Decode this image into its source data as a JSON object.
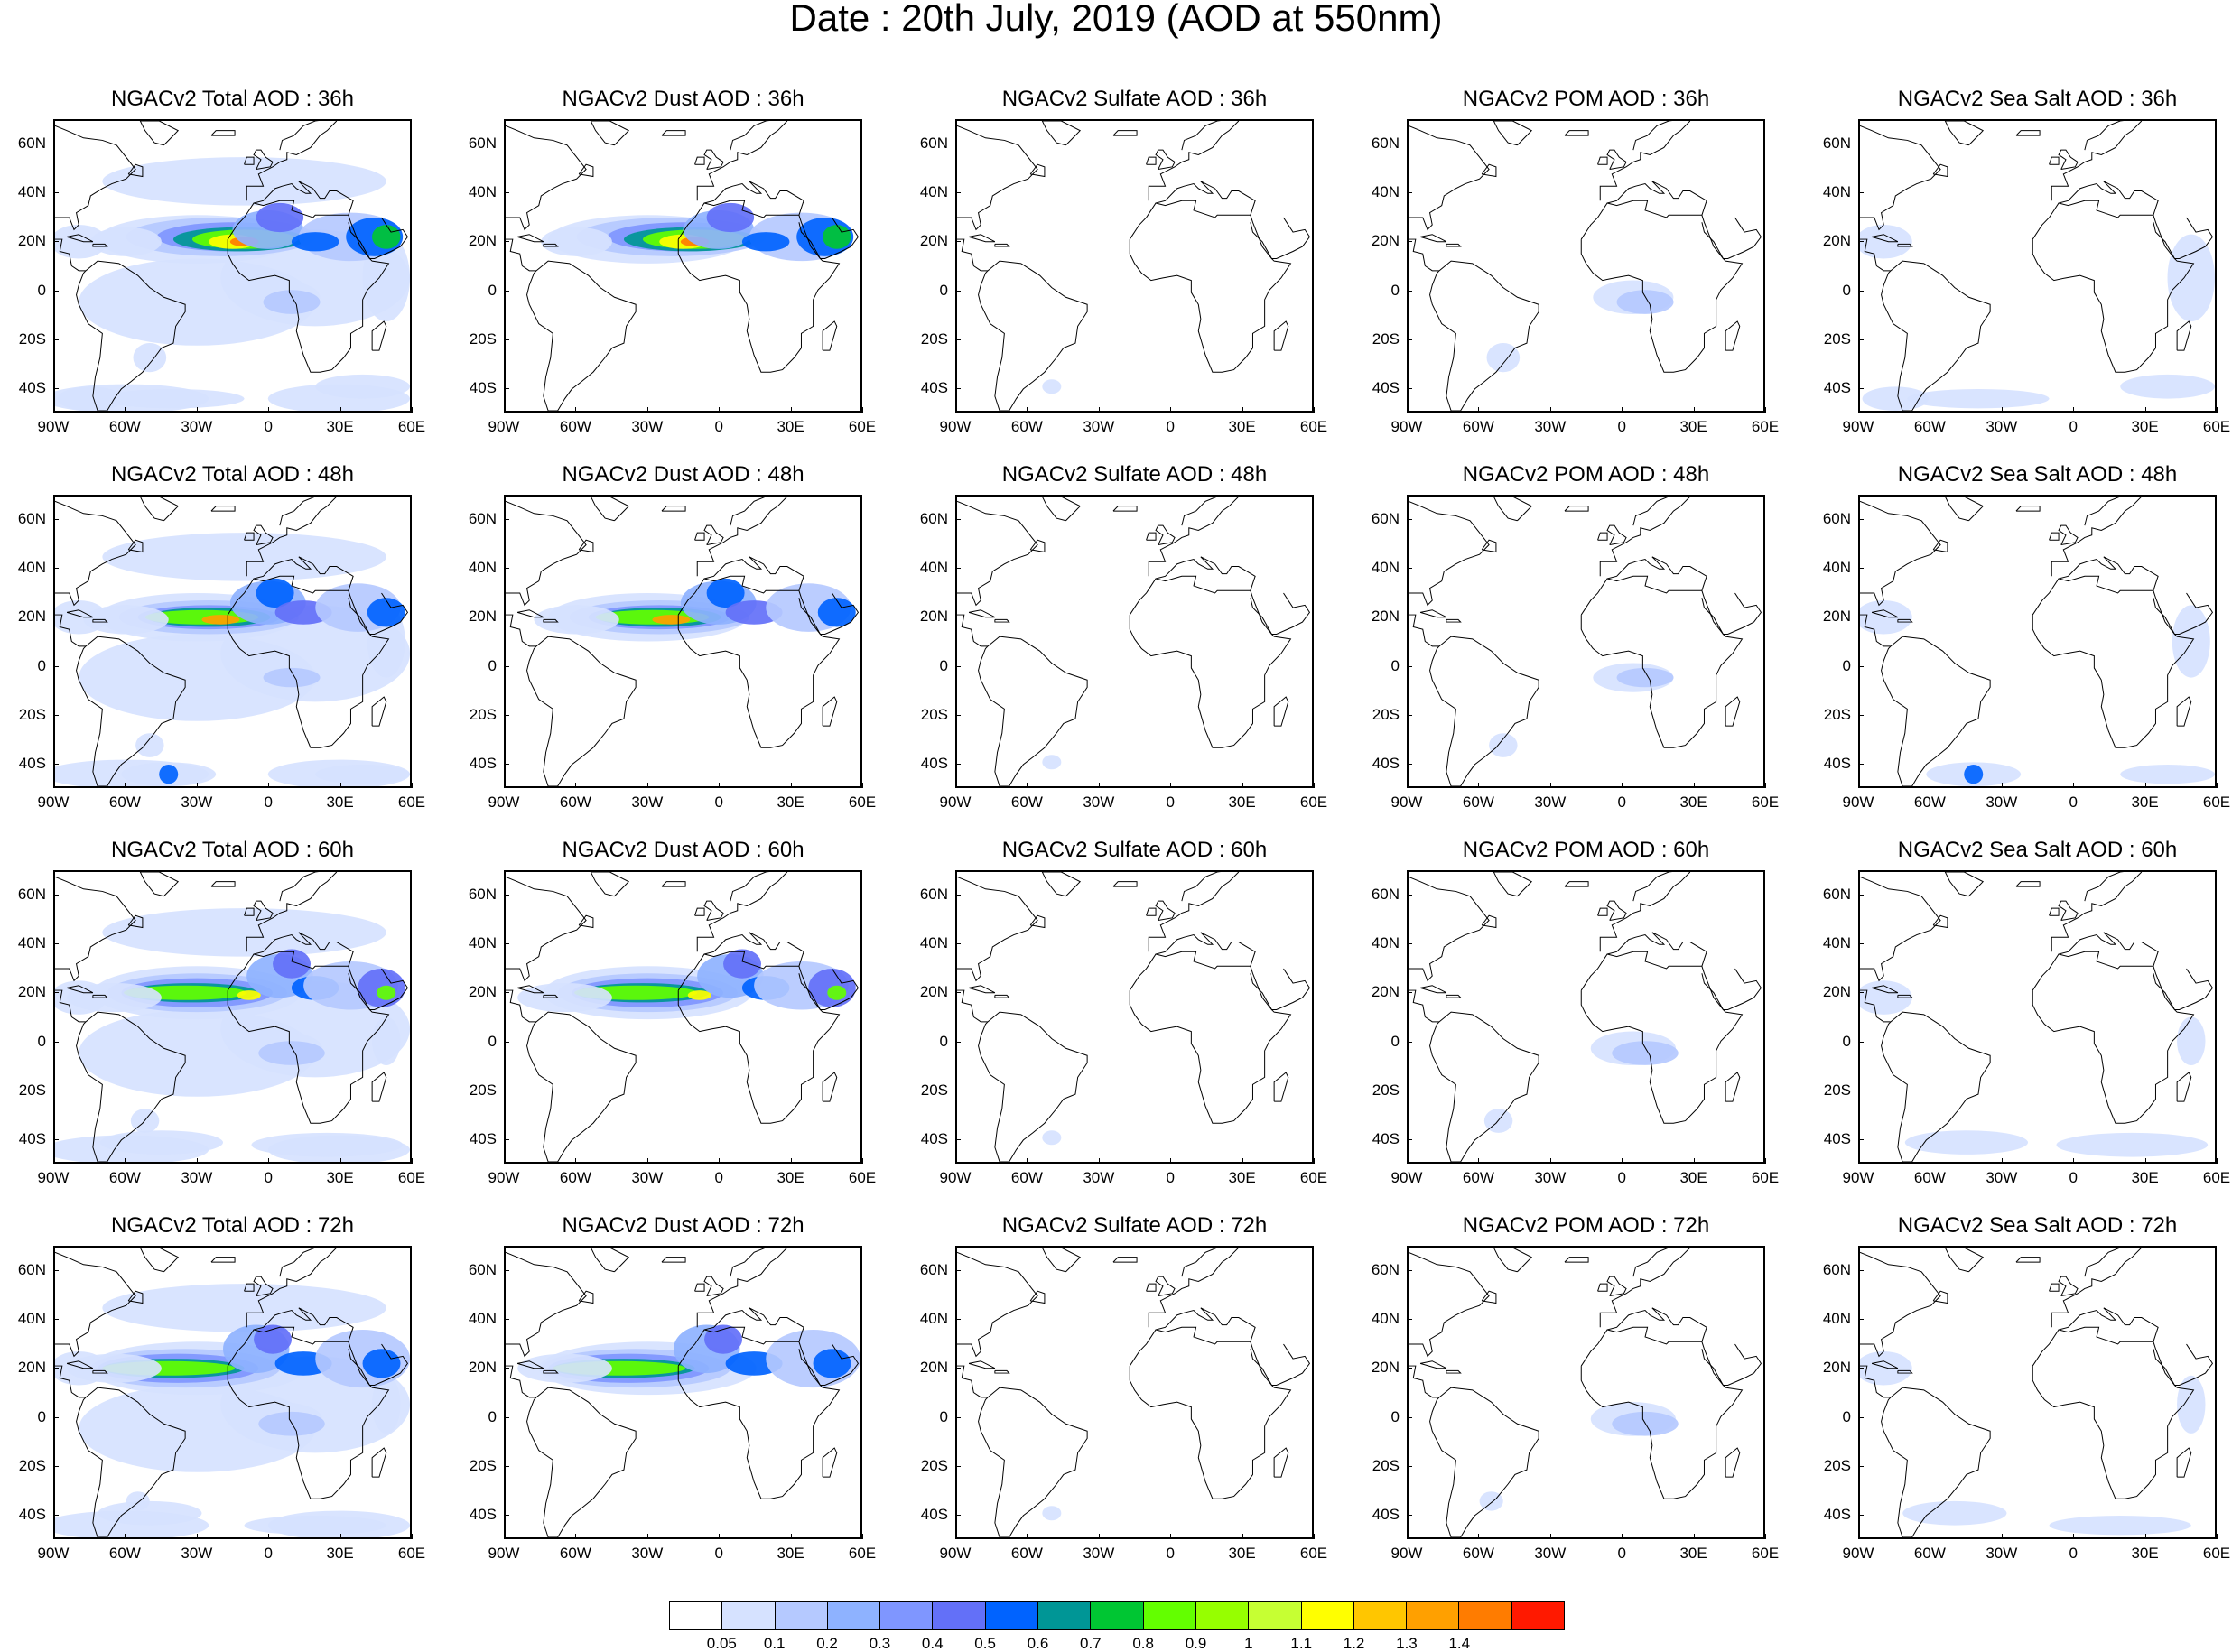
{
  "title": "Date : 20th July, 2019 (AOD at 550nm)",
  "species": [
    {
      "key": "total",
      "title_prefix": "NGACv2 Total AOD"
    },
    {
      "key": "dust",
      "title_prefix": "NGACv2 Dust AOD"
    },
    {
      "key": "sulfate",
      "title_prefix": "NGACv2 Sulfate AOD"
    },
    {
      "key": "pom",
      "title_prefix": "NGACv2 POM AOD"
    },
    {
      "key": "seasalt",
      "title_prefix": "NGACv2 Sea Salt AOD"
    }
  ],
  "panel_titles": [
    [
      "NGACv2 Total AOD : 36h",
      "NGACv2 Dust AOD : 36h",
      "NGACv2 Sulfate AOD : 36h",
      "NGACv2 POM AOD : 36h",
      "NGACv2 Sea Salt AOD : 36h"
    ],
    [
      "NGACv2 Total AOD : 48h",
      "NGACv2 Dust AOD : 48h",
      "NGACv2 Sulfate AOD : 48h",
      "NGACv2 POM AOD : 48h",
      "NGACv2 Sea Salt AOD : 48h"
    ],
    [
      "NGACv2 Total AOD : 60h",
      "NGACv2 Dust AOD : 60h",
      "NGACv2 Sulfate AOD : 60h",
      "NGACv2 POM AOD : 60h",
      "NGACv2 Sea Salt AOD : 60h"
    ],
    [
      "NGACv2 Total AOD : 72h",
      "NGACv2 Dust AOD : 72h",
      "NGACv2 Sulfate AOD : 72h",
      "NGACv2 POM AOD : 72h",
      "NGACv2 Sea Salt  AOD : 72h"
    ]
  ],
  "forecast_hours": [
    "36h",
    "48h",
    "60h",
    "72h"
  ],
  "lat_ticks": [
    {
      "label": "60N",
      "value": 60
    },
    {
      "label": "40N",
      "value": 40
    },
    {
      "label": "20N",
      "value": 20
    },
    {
      "label": "0",
      "value": 0
    },
    {
      "label": "20S",
      "value": -20
    },
    {
      "label": "40S",
      "value": -40
    }
  ],
  "lon_ticks": [
    {
      "label": "90W",
      "value": -90
    },
    {
      "label": "60W",
      "value": -60
    },
    {
      "label": "30W",
      "value": -30
    },
    {
      "label": "0",
      "value": 0
    },
    {
      "label": "30E",
      "value": 30
    },
    {
      "label": "60E",
      "value": 60
    }
  ],
  "map_extent": {
    "lon_min": -90,
    "lon_max": 60,
    "lat_min": -50,
    "lat_max": 70
  },
  "colorbar": {
    "labels": [
      "0.05",
      "0.1",
      "0.2",
      "0.3",
      "0.4",
      "0.5",
      "0.6",
      "0.7",
      "0.8",
      "0.9",
      "1",
      "1.1",
      "1.2",
      "1.3",
      "1.4"
    ],
    "colors": [
      "#ffffff",
      "#d6e2ff",
      "#b5c9ff",
      "#8eb2ff",
      "#7f96ff",
      "#6370f8",
      "#0063ff",
      "#009696",
      "#00c633",
      "#63ff00",
      "#96ff00",
      "#c6ff33",
      "#ffff00",
      "#ffc600",
      "#ffa000",
      "#ff7c00",
      "#ff1900"
    ]
  },
  "colors": {
    "land_outline": "#000000",
    "background": "#ffffff"
  }
}
